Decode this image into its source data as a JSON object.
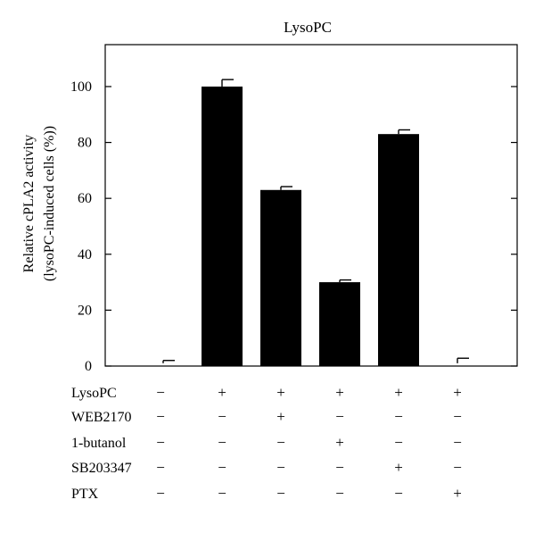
{
  "chart_data": {
    "type": "bar",
    "title": "LysoPC",
    "ylabel_lines": [
      "Relative cPLA2 activity",
      "(lysoPC-induced cells (%))"
    ],
    "ylim": [
      0,
      115
    ],
    "yticks": [
      "0",
      "20",
      "40",
      "60",
      "80",
      "100"
    ],
    "values": [
      1,
      100,
      63,
      30,
      83,
      1
    ],
    "errors": [
      1,
      2.5,
      1.2,
      0.8,
      1.5,
      1.8
    ],
    "bar_color": "#000000",
    "conditions": [
      {
        "label": "LysoPC",
        "signs": [
          "−",
          "+",
          "+",
          "+",
          "+",
          "+"
        ]
      },
      {
        "label": "WEB2170",
        "signs": [
          "−",
          "−",
          "+",
          "−",
          "−",
          "−"
        ]
      },
      {
        "label": "1-butanol",
        "signs": [
          "−",
          "−",
          "−",
          "+",
          "−",
          "−"
        ]
      },
      {
        "label": "SB203347",
        "signs": [
          "−",
          "−",
          "−",
          "−",
          "+",
          "−"
        ]
      },
      {
        "label": "PTX",
        "signs": [
          "−",
          "−",
          "−",
          "−",
          "−",
          "+"
        ]
      }
    ]
  }
}
